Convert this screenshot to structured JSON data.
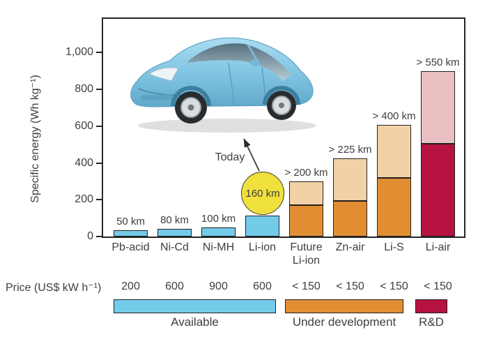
{
  "chart_data": {
    "type": "bar",
    "stacked": true,
    "ylabel": "Specific energy (Wh kg⁻¹)",
    "ylim": [
      0,
      1184
    ],
    "grid": false,
    "legend_position": "bottom",
    "yticks": [
      {
        "value": 0,
        "label": "0"
      },
      {
        "value": 200,
        "label": "200"
      },
      {
        "value": 400,
        "label": "400"
      },
      {
        "value": 600,
        "label": "600"
      },
      {
        "value": 800,
        "label": "800"
      },
      {
        "value": 1000,
        "label": "1,000"
      }
    ],
    "bars": [
      {
        "category": "Pb-acid",
        "value": 35,
        "projected_total": null,
        "range": "50 km",
        "price": "200",
        "status": "available"
      },
      {
        "category": "Ni-Cd",
        "value": 40,
        "projected_total": null,
        "range": "80 km",
        "price": "600",
        "status": "available"
      },
      {
        "category": "Ni-MH",
        "value": 50,
        "projected_total": null,
        "range": "100 km",
        "price": "900",
        "status": "available"
      },
      {
        "category": "Li-ion",
        "value": 115,
        "projected_total": null,
        "range": "160 km",
        "range_style": "circle",
        "price": "600",
        "status": "available"
      },
      {
        "category": "Future Li-ion",
        "category_lines": [
          "Future",
          "Li-ion"
        ],
        "value": 170,
        "projected_total": 300,
        "range": "> 200 km",
        "price": "< 150",
        "status": "under_development"
      },
      {
        "category": "Zn-air",
        "value": 195,
        "projected_total": 425,
        "range": "> 225 km",
        "price": "< 150",
        "status": "under_development"
      },
      {
        "category": "Li-S",
        "value": 320,
        "projected_total": 610,
        "range": "> 400 km",
        "price": "< 150",
        "status": "under_development"
      },
      {
        "category": "Li-air",
        "value": 505,
        "projected_total": 900,
        "range": "> 550 km",
        "price": "< 150",
        "status": "rnd"
      }
    ],
    "price_row_label": "Price (US$ kW h⁻¹)",
    "legend": [
      {
        "key": "available",
        "label": "Available"
      },
      {
        "key": "under_development",
        "label": "Under development"
      },
      {
        "key": "rnd",
        "label": "R&D"
      }
    ],
    "annotations": {
      "today_label": "Today"
    },
    "colors": {
      "available": "#73CBEA",
      "under_development": "#E18E33",
      "under_development_projected": "#F3D1A6",
      "rnd": "#B5123F",
      "rnd_projected": "#EBC0C2",
      "today_circle": "#F0E03C",
      "frame": "#262626",
      "text": "#3e3e3e"
    }
  }
}
